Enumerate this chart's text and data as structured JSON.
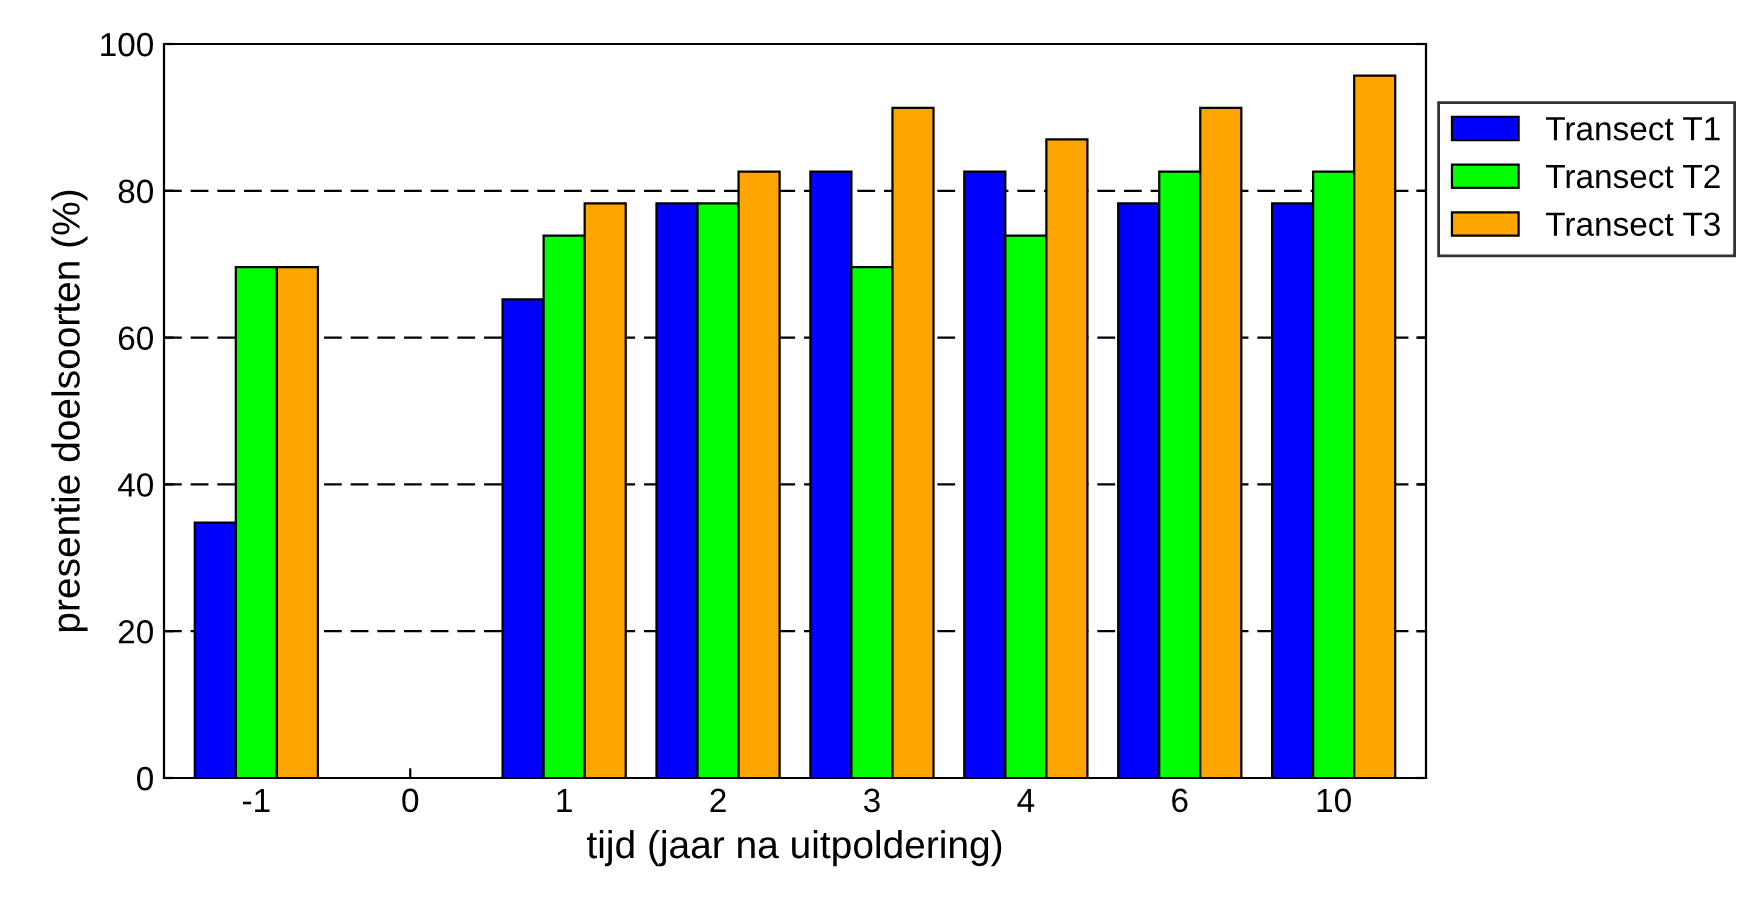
{
  "chart_data": {
    "type": "bar",
    "xlabel": "tijd (jaar na uitpoldering)",
    "ylabel": "presentie doelsoorten (%)",
    "categories": [
      "-1",
      "0",
      "1",
      "2",
      "3",
      "4",
      "6",
      "10"
    ],
    "series": [
      {
        "name": "Transect T1",
        "color": "#0000ff",
        "values": [
          34.8,
          null,
          65.2,
          78.3,
          82.6,
          82.6,
          78.3,
          78.3
        ]
      },
      {
        "name": "Transect T2",
        "color": "#00ff00",
        "values": [
          69.6,
          null,
          73.9,
          78.3,
          69.6,
          73.9,
          82.6,
          82.6
        ]
      },
      {
        "name": "Transect T3",
        "color": "#ffa500",
        "values": [
          69.6,
          null,
          78.3,
          82.6,
          91.3,
          87.0,
          91.3,
          95.7
        ]
      }
    ],
    "ylim": [
      0,
      100
    ],
    "yticks": [
      0,
      20,
      40,
      60,
      80,
      100
    ],
    "grid": "y",
    "legend": "top right"
  }
}
